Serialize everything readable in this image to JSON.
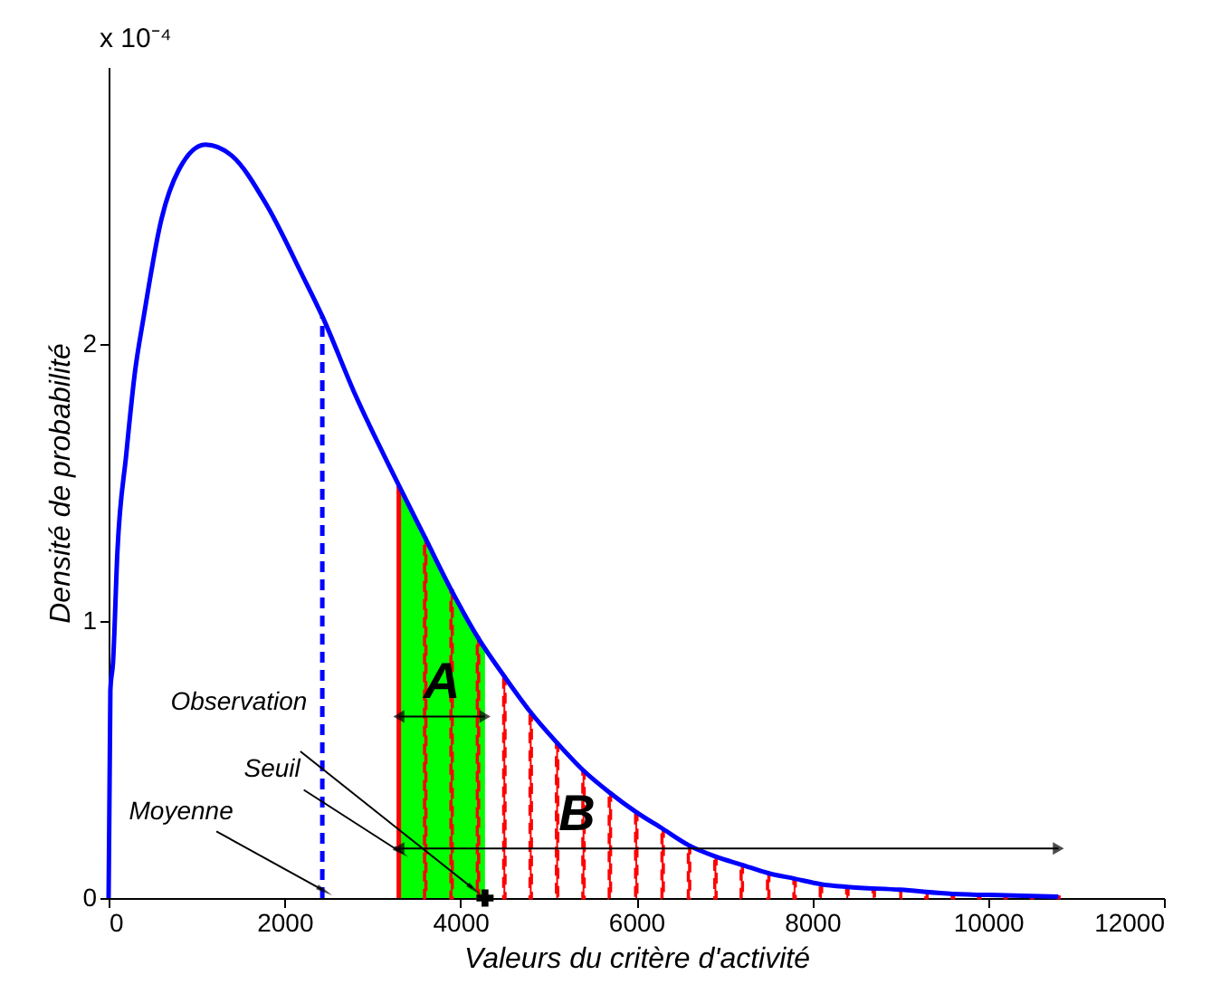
{
  "chart_data": {
    "type": "line",
    "xlabel": "Valeurs du critère d'activité",
    "ylabel": "Densité de probabilité",
    "xlim": [
      0,
      12000
    ],
    "xticks": [
      0,
      2000,
      4000,
      6000,
      8000,
      10000,
      12000
    ],
    "ylim": [
      0,
      3
    ],
    "yticks": [
      0,
      1,
      2
    ],
    "grid": false,
    "series": [
      {
        "type": "area",
        "color": "#00ff00",
        "x": [
          3300,
          3600,
          3900,
          4200,
          4280
        ],
        "values": [
          1.49,
          1.3,
          1.11,
          0.94,
          0.9
        ]
      },
      {
        "type": "bar",
        "color": "#ff0000",
        "line_style": "dashed",
        "x": [
          3600,
          3900,
          4200,
          4500,
          4800,
          5100,
          5400,
          5700,
          6000,
          6300,
          6600,
          6900,
          7200,
          7500,
          7800,
          8100,
          8400,
          8700,
          9000,
          9300,
          9600,
          9900,
          10200,
          10500,
          10800
        ],
        "values": [
          1.3,
          1.11,
          0.94,
          0.8,
          0.67,
          0.56,
          0.46,
          0.38,
          0.31,
          0.25,
          0.19,
          0.15,
          0.12,
          0.09,
          0.07,
          0.05,
          0.04,
          0.035,
          0.03,
          0.02,
          0.015,
          0.012,
          0.01,
          0.007,
          0.005
        ]
      },
      {
        "type": "line",
        "color": "#ff0000",
        "line_style": "solid",
        "x": [
          3300,
          3300
        ],
        "values": [
          0,
          1.49
        ]
      },
      {
        "type": "line",
        "color": "#0000ff",
        "line_style": "dashed",
        "x": [
          2430,
          2430
        ],
        "values": [
          0,
          2.1
        ]
      },
      {
        "color": "#0000ff",
        "line_style": "solid",
        "x": [
          0,
          20,
          50,
          100,
          200,
          300,
          400,
          600,
          800,
          1100,
          1400,
          1800,
          2200,
          2430,
          2800,
          3300,
          3600,
          3900,
          4200,
          4500,
          4800,
          5100,
          5400,
          5700,
          6000,
          6300,
          6600,
          6900,
          7200,
          7500,
          7800,
          8100,
          8400,
          9000,
          9600,
          10200,
          10800
        ],
        "values": [
          0,
          0.75,
          0.85,
          1.25,
          1.6,
          1.9,
          2.1,
          2.45,
          2.63,
          2.72,
          2.68,
          2.5,
          2.25,
          2.1,
          1.82,
          1.49,
          1.3,
          1.11,
          0.94,
          0.8,
          0.67,
          0.56,
          0.46,
          0.38,
          0.31,
          0.25,
          0.19,
          0.15,
          0.12,
          0.09,
          0.07,
          0.05,
          0.04,
          0.03,
          0.015,
          0.01,
          0.005
        ]
      },
      {
        "type": "scatter",
        "color": "#000000",
        "marker": "cross",
        "x": [
          4280
        ],
        "values": [
          0
        ]
      }
    ],
    "annotations": [
      "x 10⁻⁴",
      "Observation",
      {
        "text": "Seuil",
        "x": 3300,
        "y": 0.17
      },
      {
        "text": "Moyenne",
        "x": 2430,
        "y": 0.03
      },
      "A",
      "B"
    ]
  }
}
